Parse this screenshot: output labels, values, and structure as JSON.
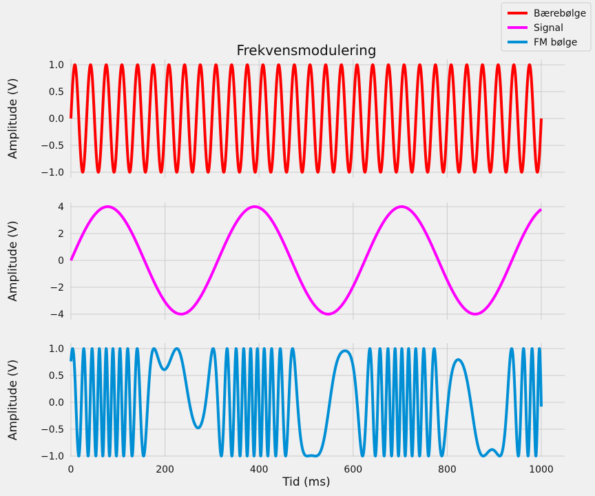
{
  "chart_data": {
    "title": "Frekvensmodulering",
    "legend_position": "top-right",
    "grid": true,
    "xlabel": "Tid (ms)",
    "x_range": [
      0,
      1000
    ],
    "x_ticks": [
      0,
      200,
      400,
      600,
      800,
      1000
    ],
    "charts": [
      {
        "type": "line",
        "series": [
          {
            "name": "Bærebølge",
            "color": "#ff0000",
            "description": "sin(2*pi*f*t), t in ms",
            "function": "sin",
            "frequency_hz": 30,
            "amplitude": 1.0,
            "phase_rad": 0
          }
        ],
        "ylabel": "Amplitude (V)",
        "ylim": [
          -1.0,
          1.0
        ],
        "y_ticks": [
          -1.0,
          -0.5,
          0.0,
          0.5,
          1.0
        ],
        "y_tick_labels": [
          "−1.0",
          "−0.5",
          "0.0",
          "0.5",
          "1.0"
        ]
      },
      {
        "type": "line",
        "series": [
          {
            "name": "Signal",
            "color": "#ff00ff",
            "function": "sin",
            "frequency_hz": 3.2,
            "amplitude": 4.0,
            "phase_rad": 0
          }
        ],
        "ylabel": "Amplitude (V)",
        "ylim": [
          -4,
          4
        ],
        "y_ticks": [
          -4,
          -2,
          0,
          2,
          4
        ],
        "y_tick_labels": [
          "−4",
          "−2",
          "0",
          "2",
          "4"
        ]
      },
      {
        "type": "line",
        "series": [
          {
            "name": "FM bølge",
            "color": "#008fd5",
            "function": "fm",
            "carrier_frequency_hz": 30,
            "amplitude": 1.0,
            "phase_offset_rad": 0.8,
            "deviation_rad": 12.5,
            "modulation_frequency_hz": 3.2
          }
        ],
        "ylabel": "Amplitude (V)",
        "ylim": [
          -1.0,
          1.0
        ],
        "y_ticks": [
          -1.0,
          -0.5,
          0.0,
          0.5,
          1.0
        ],
        "y_tick_labels": [
          "−1.0",
          "−0.5",
          "0.0",
          "0.5",
          "1.0"
        ]
      }
    ],
    "x_tick_labels": [
      "0",
      "200",
      "400",
      "600",
      "800",
      "1000"
    ]
  }
}
